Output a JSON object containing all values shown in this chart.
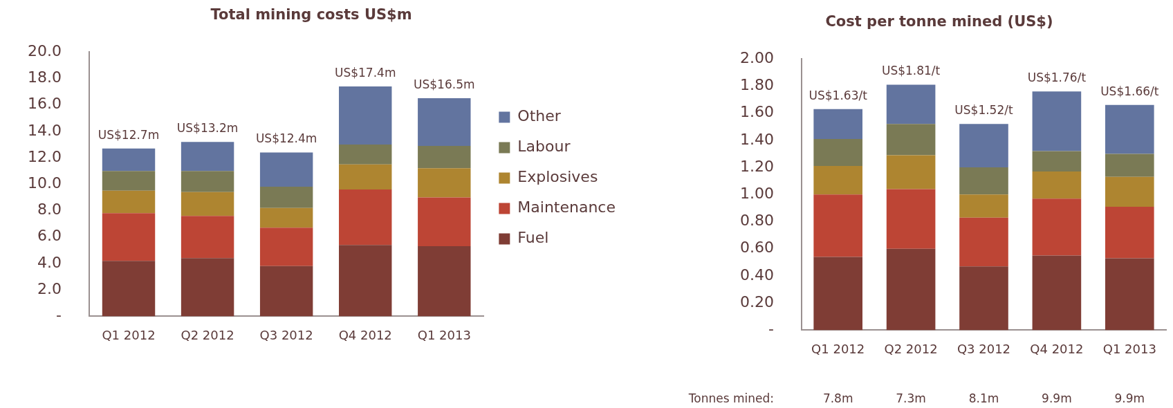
{
  "chart_data": [
    {
      "type": "bar",
      "stacked": true,
      "title": "Total mining costs US$m",
      "categories": [
        "Q1 2012",
        "Q2 2012",
        "Q3 2012",
        "Q4 2012",
        "Q1 2013"
      ],
      "series": [
        {
          "name": "Fuel",
          "color": "#7f3d35",
          "values": [
            4.2,
            4.4,
            3.8,
            5.4,
            5.3
          ]
        },
        {
          "name": "Maintenance",
          "color": "#bd4535",
          "values": [
            3.6,
            3.2,
            2.9,
            4.2,
            3.7
          ]
        },
        {
          "name": "Explosives",
          "color": "#ae8530",
          "values": [
            1.7,
            1.8,
            1.5,
            1.9,
            2.2
          ]
        },
        {
          "name": "Labour",
          "color": "#7a7a55",
          "values": [
            1.5,
            1.6,
            1.6,
            1.5,
            1.7
          ]
        },
        {
          "name": "Other",
          "color": "#62749f",
          "values": [
            1.7,
            2.2,
            2.6,
            4.4,
            3.6
          ]
        }
      ],
      "ylim": [
        0,
        20
      ],
      "yticks": [
        {
          "value": 0,
          "label": "-"
        },
        {
          "value": 2,
          "label": "2.0"
        },
        {
          "value": 4,
          "label": "4.0"
        },
        {
          "value": 6,
          "label": "6.0"
        },
        {
          "value": 8,
          "label": "8.0"
        },
        {
          "value": 10,
          "label": "10.0"
        },
        {
          "value": 12,
          "label": "12.0"
        },
        {
          "value": 14,
          "label": "14.0"
        },
        {
          "value": 16,
          "label": "16.0"
        },
        {
          "value": 18,
          "label": "18.0"
        },
        {
          "value": 20,
          "label": "20.0"
        }
      ],
      "totals": [
        "US$12.7m",
        "US$13.2m",
        "US$12.4m",
        "US$17.4m",
        "US$16.5m"
      ],
      "grid": false,
      "legend": "right"
    },
    {
      "type": "bar",
      "stacked": true,
      "title": "Cost per tonne mined (US$)",
      "categories": [
        "Q1 2012",
        "Q2 2012",
        "Q3 2012",
        "Q4 2012",
        "Q1 2013"
      ],
      "series": [
        {
          "color": "#7f3d35",
          "values": [
            0.54,
            0.6,
            0.47,
            0.55,
            0.53
          ]
        },
        {
          "color": "#bd4535",
          "values": [
            0.46,
            0.44,
            0.36,
            0.42,
            0.38
          ]
        },
        {
          "color": "#ae8530",
          "values": [
            0.21,
            0.25,
            0.17,
            0.2,
            0.22
          ]
        },
        {
          "color": "#7a7a55",
          "values": [
            0.2,
            0.23,
            0.2,
            0.15,
            0.17
          ]
        },
        {
          "color": "#62749f",
          "values": [
            0.22,
            0.29,
            0.32,
            0.44,
            0.36
          ]
        }
      ],
      "ylim": [
        0,
        2
      ],
      "yticks": [
        {
          "value": 0,
          "label": "-"
        },
        {
          "value": 0.2,
          "label": "0.20"
        },
        {
          "value": 0.4,
          "label": "0.40"
        },
        {
          "value": 0.6,
          "label": "0.60"
        },
        {
          "value": 0.8,
          "label": "0.80"
        },
        {
          "value": 1,
          "label": "1.00"
        },
        {
          "value": 1.2,
          "label": "1.20"
        },
        {
          "value": 1.4,
          "label": "1.40"
        },
        {
          "value": 1.6,
          "label": "1.60"
        },
        {
          "value": 1.8,
          "label": "1.80"
        },
        {
          "value": 2,
          "label": "2.00"
        }
      ],
      "totals": [
        "US$1.63/t",
        "US$1.81/t",
        "US$1.52/t",
        "US$1.76/t",
        "US$1.66/t"
      ],
      "annotations": [
        "Tonnes mined:",
        "7.8m",
        "7.3m",
        "8.1m",
        "9.9m",
        "9.9m"
      ],
      "grid": false,
      "legend": false
    }
  ]
}
